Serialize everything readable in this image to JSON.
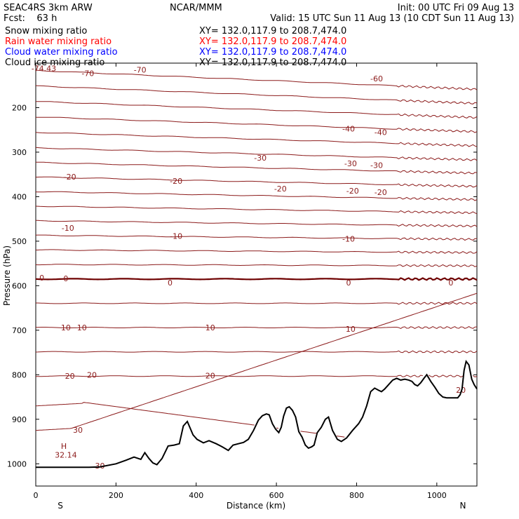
{
  "header": {
    "model": "SEAC4RS  3km ARW",
    "forecast": "Fcst:    63 h",
    "center": "NCAR/MMM",
    "init": "Init: 00 UTC Fri 09 Aug 13",
    "valid": "Valid: 15 UTC Sun 11 Aug 13 (10 CDT Sun 11 Aug 13)"
  },
  "fields": [
    {
      "label": "Snow mixing ratio",
      "xy": "XY= 132.0,117.9 to 208.7,474.0",
      "color": "#000000"
    },
    {
      "label": "Rain water mixing ratio",
      "xy": "XY= 132.0,117.9 to 208.7,474.0",
      "color": "#ff0000"
    },
    {
      "label": "Cloud water mixing ratio",
      "xy": "XY= 132.0,117.9 to 208.7,474.0",
      "color": "#0000ff"
    },
    {
      "label": "Cloud ice mixing ratio",
      "xy": "XY= 132.0,117.9 to 208.7,474.0",
      "color": "#000000"
    }
  ],
  "colors": {
    "isotherm": "#8b1a1a",
    "zero_isotherm": "#6e0000",
    "terrain": "#000000"
  },
  "chart_data": {
    "type": "line",
    "title": "",
    "xlabel": "Distance (km)",
    "ylabel": "Pressure (hPa)",
    "xlim": [
      0,
      1100
    ],
    "ylim": [
      100,
      1050
    ],
    "y_log_scale": false,
    "x_ticks": [
      0,
      200,
      400,
      600,
      800,
      1000
    ],
    "y_ticks": [
      200,
      300,
      400,
      500,
      600,
      700,
      800,
      900,
      1000
    ],
    "x_end_labels": {
      "left": "S",
      "right": "N"
    },
    "grid": false,
    "temperature_contours_degC": [
      -70,
      -65,
      -60,
      -55,
      -50,
      -45,
      -40,
      -35,
      -30,
      -25,
      -20,
      -15,
      -10,
      -5,
      0,
      5,
      10,
      15,
      20,
      25,
      30
    ],
    "contour_labels": [
      {
        "text": "-74.43",
        "x": 20,
        "p": 112
      },
      {
        "text": "-70",
        "x": 260,
        "p": 115
      },
      {
        "text": "-70",
        "x": 130,
        "p": 123
      },
      {
        "text": "-60",
        "x": 850,
        "p": 135
      },
      {
        "text": "-40",
        "x": 780,
        "p": 247
      },
      {
        "text": "-40",
        "x": 860,
        "p": 255
      },
      {
        "text": "-30",
        "x": 560,
        "p": 313
      },
      {
        "text": "-30",
        "x": 785,
        "p": 325
      },
      {
        "text": "-30",
        "x": 850,
        "p": 329
      },
      {
        "text": "-20",
        "x": 85,
        "p": 355
      },
      {
        "text": "-20",
        "x": 350,
        "p": 365
      },
      {
        "text": "-20",
        "x": 610,
        "p": 382
      },
      {
        "text": "-20",
        "x": 790,
        "p": 387
      },
      {
        "text": "-20",
        "x": 860,
        "p": 390
      },
      {
        "text": "-10",
        "x": 80,
        "p": 470
      },
      {
        "text": "-10",
        "x": 350,
        "p": 488
      },
      {
        "text": "-10",
        "x": 780,
        "p": 495
      },
      {
        "text": "0",
        "x": 15,
        "p": 582
      },
      {
        "text": "0",
        "x": 75,
        "p": 584
      },
      {
        "text": "0",
        "x": 335,
        "p": 593
      },
      {
        "text": "0",
        "x": 780,
        "p": 593
      },
      {
        "text": "0",
        "x": 1035,
        "p": 593
      },
      {
        "text": "10",
        "x": 75,
        "p": 694
      },
      {
        "text": "10",
        "x": 115,
        "p": 694
      },
      {
        "text": "10",
        "x": 435,
        "p": 694
      },
      {
        "text": "10",
        "x": 785,
        "p": 697
      },
      {
        "text": "20",
        "x": 85,
        "p": 803
      },
      {
        "text": "20",
        "x": 140,
        "p": 800
      },
      {
        "text": "20",
        "x": 435,
        "p": 802
      },
      {
        "text": "20",
        "x": 1060,
        "p": 834
      },
      {
        "text": "30",
        "x": 105,
        "p": 924
      },
      {
        "text": "30",
        "x": 160,
        "p": 1004
      },
      {
        "text": "H",
        "x": 70,
        "p": 960
      },
      {
        "text": "32.14",
        "x": 75,
        "p": 980
      }
    ],
    "terrain_profile": {
      "name": "",
      "x": [
        0,
        60,
        130,
        160,
        200,
        225,
        245,
        262,
        272,
        282,
        292,
        302,
        315,
        330,
        345,
        358,
        368,
        378,
        392,
        402,
        418,
        432,
        450,
        465,
        480,
        492,
        505,
        518,
        530,
        543,
        555,
        565,
        575,
        582,
        590,
        598,
        606,
        612,
        618,
        625,
        632,
        640,
        648,
        656,
        664,
        672,
        680,
        688,
        694,
        702,
        712,
        722,
        730,
        740,
        752,
        762,
        775,
        790,
        805,
        815,
        825,
        835,
        845,
        855,
        862,
        870,
        880,
        890,
        900,
        910,
        920,
        930,
        938,
        945,
        952,
        960,
        968,
        975,
        985,
        995,
        1005,
        1015,
        1025,
        1035,
        1045,
        1052,
        1058,
        1063,
        1068,
        1073,
        1080,
        1087,
        1093,
        1100
      ],
      "p": [
        1008,
        1008,
        1008,
        1007,
        1000,
        992,
        985,
        990,
        975,
        988,
        998,
        1002,
        988,
        960,
        958,
        955,
        915,
        905,
        935,
        945,
        953,
        948,
        955,
        962,
        970,
        958,
        955,
        952,
        945,
        925,
        902,
        892,
        888,
        890,
        910,
        922,
        930,
        918,
        893,
        875,
        872,
        880,
        895,
        928,
        940,
        958,
        965,
        962,
        958,
        930,
        918,
        900,
        895,
        925,
        945,
        950,
        942,
        925,
        910,
        895,
        870,
        838,
        830,
        835,
        838,
        832,
        822,
        812,
        808,
        812,
        810,
        812,
        815,
        822,
        825,
        818,
        808,
        800,
        815,
        828,
        842,
        850,
        852,
        852,
        852,
        852,
        845,
        832,
        790,
        770,
        778,
        810,
        822,
        832
      ]
    }
  }
}
